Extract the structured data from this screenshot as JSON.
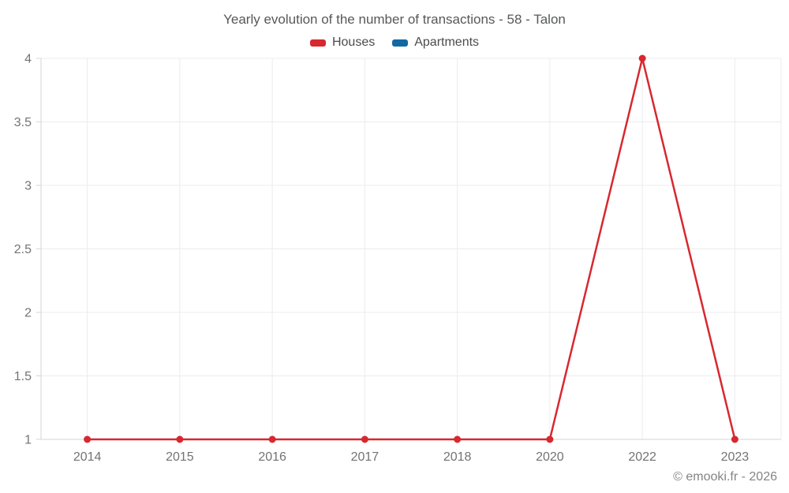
{
  "title": "Yearly evolution of the number of transactions - 58 - Talon",
  "legend": {
    "items": [
      {
        "label": "Houses",
        "color": "#d7282f"
      },
      {
        "label": "Apartments",
        "color": "#1269a2"
      }
    ]
  },
  "footer": {
    "copyright": "© emooki.fr - 2026"
  },
  "colors": {
    "houses": "#d7282f",
    "apartments": "#1269a2",
    "grid": "#ececec",
    "axis": "#d6d6d6",
    "tick_label": "#737373",
    "title": "#56585a",
    "copyright": "#848484",
    "background": "#ffffff"
  },
  "chart_data": {
    "type": "line",
    "title": "Yearly evolution of the number of transactions - 58 - Talon",
    "categories": [
      "2014",
      "2015",
      "2016",
      "2017",
      "2018",
      "2020",
      "2022",
      "2023"
    ],
    "series": [
      {
        "name": "Houses",
        "color": "#d7282f",
        "values": [
          1,
          1,
          1,
          1,
          1,
          1,
          4,
          1
        ]
      },
      {
        "name": "Apartments",
        "color": "#1269a2",
        "values": []
      }
    ],
    "xlabel": "",
    "ylabel": "",
    "ylim": [
      1,
      4
    ],
    "yticks": [
      1,
      1.5,
      2,
      2.5,
      3,
      3.5,
      4
    ],
    "grid": true,
    "legend_position": "top",
    "marker_radius": 4.5,
    "line_width": 2.5
  }
}
